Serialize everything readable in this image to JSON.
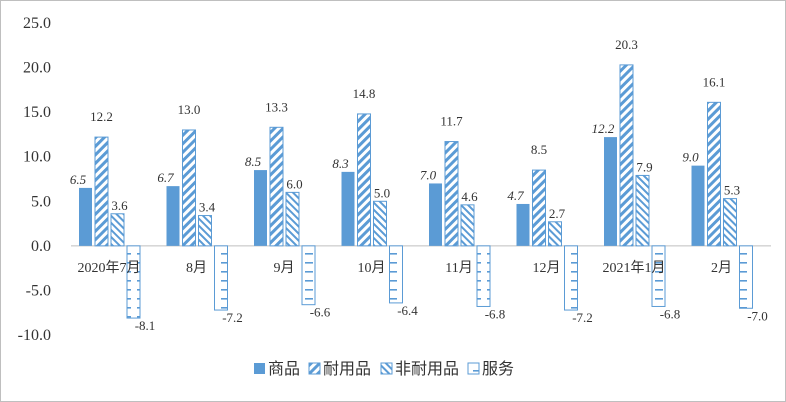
{
  "chart_data": {
    "type": "bar",
    "categories": [
      "2020年7月",
      "8月",
      "9月",
      "10月",
      "11月",
      "12月",
      "2021年1月",
      "2月"
    ],
    "series": [
      {
        "name": "商品",
        "values": [
          6.5,
          6.7,
          8.5,
          8.3,
          7.0,
          4.7,
          12.2,
          9.0
        ]
      },
      {
        "name": "耐用品",
        "values": [
          12.2,
          13.0,
          13.3,
          14.8,
          11.7,
          8.5,
          20.3,
          16.1
        ]
      },
      {
        "name": "非耐用品",
        "values": [
          3.6,
          3.4,
          6.0,
          5.0,
          4.6,
          2.7,
          7.9,
          5.3
        ]
      },
      {
        "name": "服务",
        "values": [
          -8.1,
          -7.2,
          -6.6,
          -6.4,
          -6.8,
          -7.2,
          -6.8,
          -7.0
        ]
      }
    ],
    "data_labels": [
      [
        "6.5",
        "6.7",
        "8.5",
        "8.3",
        "7.0",
        "4.7",
        "12.2",
        "9.0"
      ],
      [
        "12.2",
        "13.0",
        "13.3",
        "14.8",
        "11.7",
        "8.5",
        "20.3",
        "16.1"
      ],
      [
        "3.6",
        "3.4",
        "6.0",
        "5.0",
        "4.6",
        "2.7",
        "7.9",
        "5.3"
      ],
      [
        "-8.1",
        "-7.2",
        "-6.6",
        "-6.4",
        "-6.8",
        "-7.2",
        "-6.8",
        "-7.0"
      ]
    ],
    "yticks": [
      "25.0",
      "20.0",
      "15.0",
      "10.0",
      "5.0",
      "0.0",
      "-5.0",
      "-10.0"
    ],
    "ylim": [
      -10,
      25
    ],
    "legend_position": "bottom",
    "grid": false,
    "colors": {
      "solid": "#5b9bd5",
      "stroke": "#5b9bd5",
      "hatch": "#4a90d9",
      "axis": "#bfbfbf"
    }
  }
}
